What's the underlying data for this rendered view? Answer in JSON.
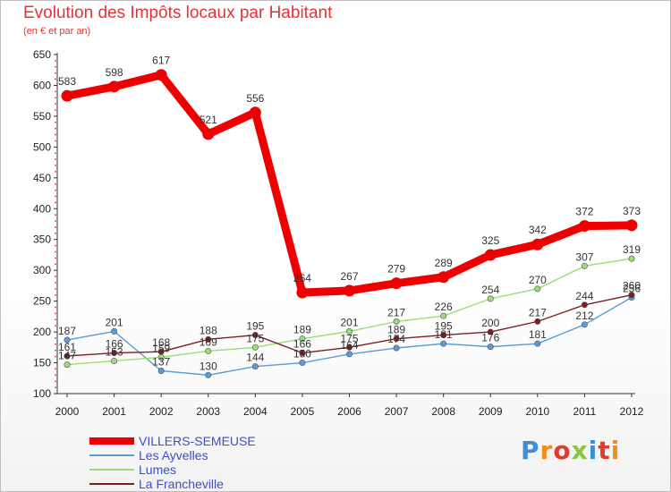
{
  "title": "Evolution des Impôts locaux par Habitant",
  "subtitle": "(en € et par an)",
  "brand": {
    "text": "Proxiti",
    "letter_colors": [
      "#3a8fd6",
      "#f08c1a",
      "#e23b2e",
      "#8cc63f",
      "#3a8fd6",
      "#e23b2e",
      "#f08c1a"
    ]
  },
  "chart_data": {
    "type": "line",
    "title": "Evolution des Impôts locaux par Habitant",
    "subtitle": "(en € et par an)",
    "x": [
      "2000",
      "2001",
      "2002",
      "2003",
      "2004",
      "2005",
      "2006",
      "2007",
      "2008",
      "2009",
      "2010",
      "2011",
      "2012"
    ],
    "ylim": [
      100,
      650
    ],
    "yticks": [
      100,
      150,
      200,
      250,
      300,
      350,
      400,
      450,
      500,
      550,
      600,
      650
    ],
    "grid": false,
    "legend_position": "bottom-left",
    "series": [
      {
        "name": "VILLERS-SEMEUSE",
        "color": "#ee0000",
        "highlight": true,
        "values": [
          583,
          598,
          617,
          521,
          556,
          264,
          267,
          279,
          289,
          325,
          342,
          372,
          373
        ],
        "labels": [
          "583",
          "598",
          "617",
          "521",
          "556",
          "264",
          "267",
          "279",
          "289",
          "325",
          "342",
          "372",
          "373"
        ]
      },
      {
        "name": "Les Ayvelles",
        "color": "#5b9bd5",
        "highlight": false,
        "values": [
          187,
          201,
          137,
          130,
          144,
          150,
          164,
          174,
          181,
          176,
          181,
          212,
          256
        ],
        "labels": [
          "187",
          "201",
          "137",
          "130",
          "144",
          "150",
          "164",
          "174",
          "181",
          "176",
          "181",
          "212",
          "256"
        ]
      },
      {
        "name": "Lumes",
        "color": "#99dd77",
        "highlight": false,
        "values": [
          147,
          153,
          159,
          169,
          175,
          189,
          201,
          217,
          226,
          254,
          270,
          307,
          319
        ],
        "labels": [
          "147",
          "153",
          "159",
          "169",
          "175",
          "189",
          "201",
          "217",
          "226",
          "254",
          "270",
          "307",
          "319"
        ]
      },
      {
        "name": "La Francheville",
        "color": "#7a1e22",
        "highlight": false,
        "values": [
          161,
          166,
          168,
          188,
          195,
          166,
          175,
          189,
          195,
          200,
          217,
          244,
          260
        ],
        "labels": [
          "161",
          "166",
          "168",
          "188",
          "195",
          "166",
          "175",
          "189",
          "195",
          "200",
          "217",
          "244",
          "260"
        ]
      }
    ]
  }
}
